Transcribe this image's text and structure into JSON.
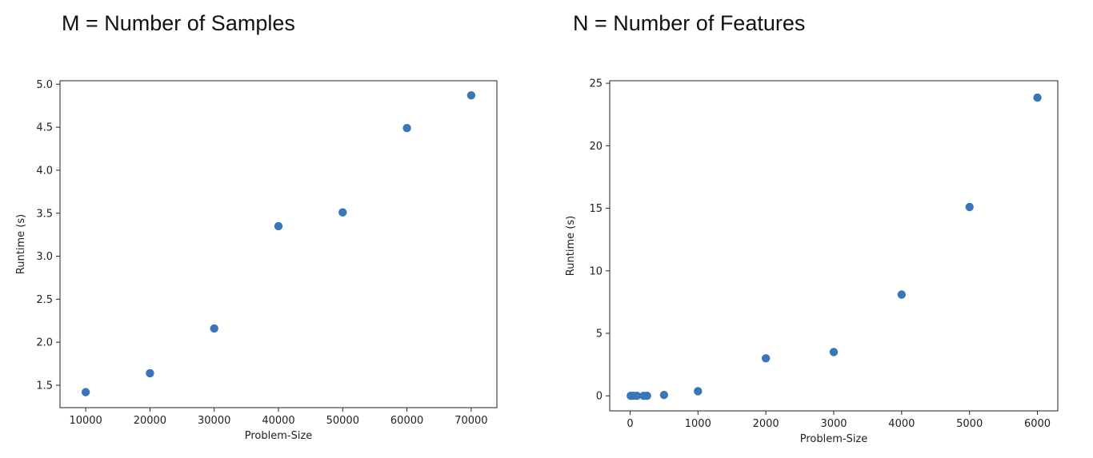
{
  "panels": {
    "left_heading": "M = Number of Samples",
    "right_heading": "N = Number of Features"
  },
  "colors": {
    "marker": "#3a75b5",
    "axes": "#222222"
  },
  "chart_data": [
    {
      "type": "scatter",
      "title": "",
      "xlabel": "Problem-Size",
      "ylabel": "Runtime (s)",
      "xlim": [
        6000,
        74000
      ],
      "ylim": [
        1.24,
        5.04
      ],
      "xticks": [
        10000,
        20000,
        30000,
        40000,
        50000,
        60000,
        70000
      ],
      "yticks": [
        1.5,
        2.0,
        2.5,
        3.0,
        3.5,
        4.0,
        4.5,
        5.0
      ],
      "ytick_labels": [
        "1.5",
        "2.0",
        "2.5",
        "3.0",
        "3.5",
        "4.0",
        "4.5",
        "5.0"
      ],
      "grid": false,
      "x": [
        10000,
        20000,
        30000,
        40000,
        50000,
        60000,
        70000
      ],
      "y": [
        1.42,
        1.64,
        2.16,
        3.35,
        3.51,
        4.49,
        4.87
      ]
    },
    {
      "type": "scatter",
      "title": "",
      "xlabel": "Problem-Size",
      "ylabel": "Runtime (s)",
      "xlim": [
        -300,
        6300
      ],
      "ylim": [
        -1.2,
        25.2
      ],
      "xticks": [
        0,
        1000,
        2000,
        3000,
        4000,
        5000,
        6000
      ],
      "yticks": [
        0,
        5,
        10,
        15,
        20,
        25
      ],
      "ytick_labels": [
        "0",
        "5",
        "10",
        "15",
        "20",
        "25"
      ],
      "grid": false,
      "x": [
        10,
        50,
        100,
        200,
        250,
        500,
        1000,
        2000,
        3000,
        4000,
        5000,
        6000
      ],
      "y": [
        0.0,
        0.0,
        0.0,
        0.0,
        0.0,
        0.07,
        0.37,
        3.0,
        3.5,
        8.1,
        15.1,
        23.85
      ]
    }
  ]
}
